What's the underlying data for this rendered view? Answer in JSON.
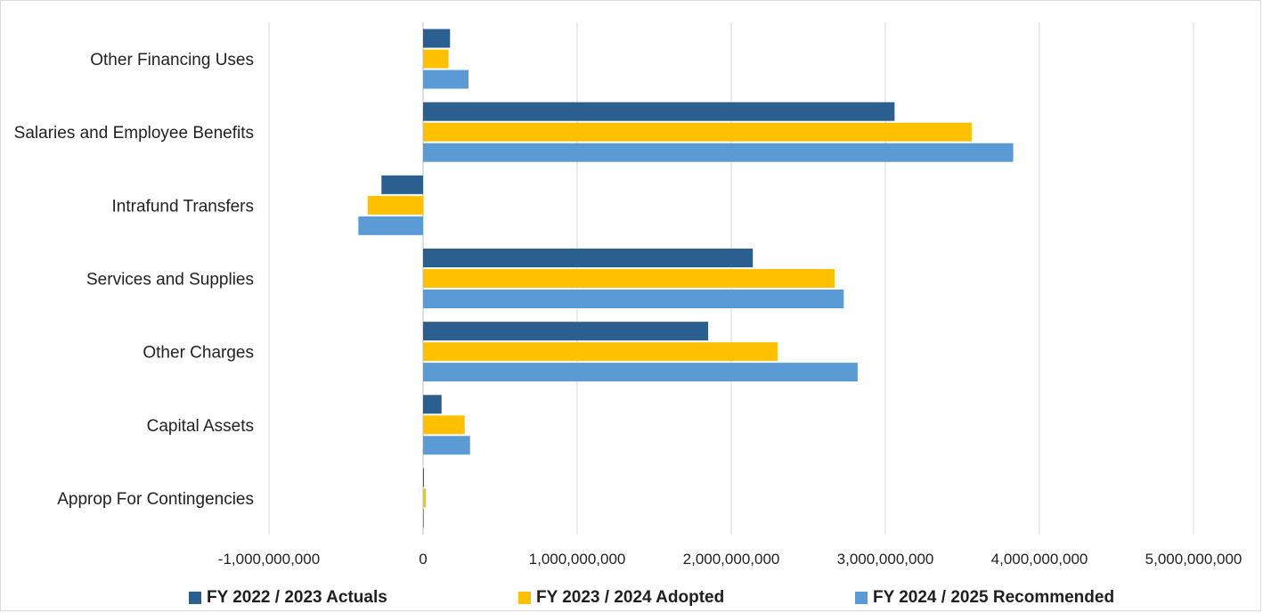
{
  "chart_data": {
    "type": "bar",
    "orientation": "horizontal",
    "categories": [
      "Other Financing Uses",
      "Salaries and Employee Benefits",
      "Intrafund Transfers",
      "Services and Supplies",
      "Other Charges",
      "Capital Assets",
      "Approp For Contingencies"
    ],
    "series": [
      {
        "name": "FY 2022 / 2023 Actuals",
        "color": "#2a5f8f",
        "values": [
          175000000,
          3060000000,
          -270000000,
          2140000000,
          1850000000,
          120000000,
          0
        ]
      },
      {
        "name": "FY 2023 / 2024 Adopted",
        "color": "#ffc000",
        "values": [
          165000000,
          3560000000,
          -360000000,
          2670000000,
          2300000000,
          270000000,
          18000000
        ]
      },
      {
        "name": "FY 2024 / 2025 Recommended",
        "color": "#5b9bd5",
        "values": [
          295000000,
          3830000000,
          -420000000,
          2730000000,
          2820000000,
          305000000,
          6000000
        ]
      }
    ],
    "xlim": [
      -1000000000,
      5000000000
    ],
    "x_ticks": [
      -1000000000,
      0,
      1000000000,
      2000000000,
      3000000000,
      4000000000,
      5000000000
    ],
    "x_tick_labels": [
      "-1,000,000,000",
      "0",
      "1,000,000,000",
      "2,000,000,000",
      "3,000,000,000",
      "4,000,000,000",
      "5,000,000,000"
    ],
    "title": "",
    "xlabel": "",
    "ylabel": "",
    "grid": "vertical",
    "legend_position": "bottom"
  }
}
